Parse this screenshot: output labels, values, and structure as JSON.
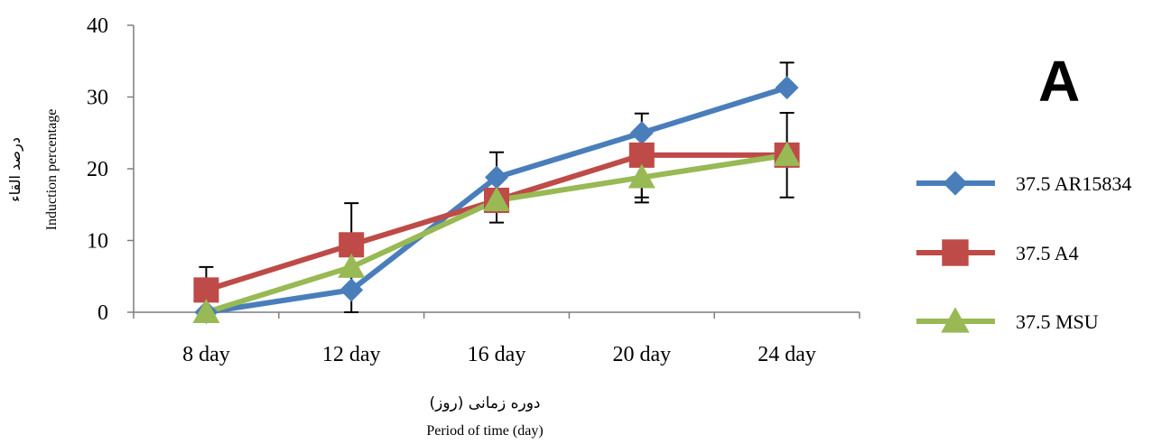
{
  "chart_data": {
    "type": "line",
    "panel_label": "A",
    "categories": [
      "8 day",
      "12 day",
      "16 day",
      "20 day",
      "24 day"
    ],
    "ylim": [
      0,
      40
    ],
    "yticks": [
      0,
      10,
      20,
      30,
      40
    ],
    "xlabel_fa": "دوره زمانی (روز)",
    "xlabel_en": "Period of time (day)",
    "ylabel_fa": "درصد القاء",
    "ylabel_en": "Induction percentage",
    "grid": false,
    "legend_position": "right",
    "series": [
      {
        "name": "37.5 AR15834",
        "color": "#4a7ebb",
        "marker": "diamond",
        "values": [
          0,
          3.1,
          18.8,
          25.0,
          31.3
        ],
        "error_upper": [
          null,
          null,
          22.3,
          27.7,
          34.8
        ],
        "error_lower": [
          null,
          null,
          null,
          null,
          null
        ]
      },
      {
        "name": "37.5 A4",
        "color": "#be4b48",
        "marker": "square",
        "values": [
          3.1,
          9.4,
          15.6,
          21.9,
          21.9
        ],
        "error_upper": [
          6.3,
          15.2,
          null,
          null,
          null
        ],
        "error_lower": [
          null,
          3.6,
          12.5,
          16.0,
          16.0
        ]
      },
      {
        "name": "37.5 MSU",
        "color": "#98b954",
        "marker": "triangle",
        "values": [
          0,
          6.3,
          15.6,
          18.8,
          21.9
        ],
        "error_upper": [
          null,
          null,
          null,
          null,
          27.8
        ],
        "error_lower": [
          null,
          0,
          null,
          15.3,
          null
        ]
      }
    ]
  }
}
